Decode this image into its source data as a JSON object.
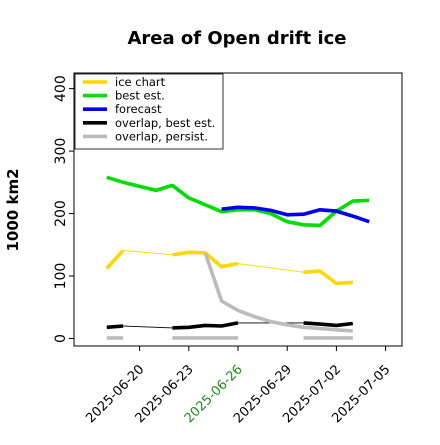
{
  "chart_data": {
    "type": "line",
    "title": "Area of Open drift ice",
    "ylabel": "1000 km2",
    "xlabel": "",
    "ylim": [
      -12,
      425
    ],
    "xlim": [
      "2025-06-16",
      "2025-07-06"
    ],
    "yticks": [
      0,
      100,
      200,
      300,
      400
    ],
    "xticks": [
      {
        "label": "2025-06-20",
        "date": "2025-06-20",
        "color": "#000000"
      },
      {
        "label": "2025-06-23",
        "date": "2025-06-23",
        "color": "#000000"
      },
      {
        "label": "2025-06-26",
        "date": "2025-06-26",
        "color": "#228B22"
      },
      {
        "label": "2025-06-29",
        "date": "2025-06-29",
        "color": "#000000"
      },
      {
        "label": "2025-07-02",
        "date": "2025-07-02",
        "color": "#000000"
      },
      {
        "label": "2025-07-05",
        "date": "2025-07-05",
        "color": "#000000"
      }
    ],
    "grid": false,
    "legend": {
      "position": "top-left"
    },
    "series": [
      {
        "name": "ice chart",
        "color": "#FFD700",
        "segments": [
          {
            "style": "thick",
            "points": [
              [
                "2025-06-18",
                112
              ],
              [
                "2025-06-19",
                141
              ]
            ]
          },
          {
            "style": "thin",
            "points": [
              [
                "2025-06-19",
                141
              ],
              [
                "2025-06-22",
                134
              ]
            ]
          },
          {
            "style": "thick",
            "points": [
              [
                "2025-06-22",
                134
              ],
              [
                "2025-06-23",
                138
              ],
              [
                "2025-06-24",
                137
              ],
              [
                "2025-06-25",
                115
              ],
              [
                "2025-06-26",
                120
              ]
            ]
          },
          {
            "style": "thin",
            "points": [
              [
                "2025-06-26",
                120
              ],
              [
                "2025-06-30",
                106
              ]
            ]
          },
          {
            "style": "thick",
            "points": [
              [
                "2025-06-30",
                106
              ],
              [
                "2025-07-01",
                108
              ],
              [
                "2025-07-02",
                88
              ],
              [
                "2025-07-03",
                90
              ]
            ]
          }
        ]
      },
      {
        "name": "best est.",
        "color": "#00DD00",
        "segments": [
          {
            "style": "thick",
            "points": [
              [
                "2025-06-18",
                258
              ],
              [
                "2025-06-19",
                250
              ],
              [
                "2025-06-21",
                237
              ],
              [
                "2025-06-22",
                245
              ],
              [
                "2025-06-23",
                225
              ],
              [
                "2025-06-25",
                203
              ],
              [
                "2025-06-26",
                206
              ],
              [
                "2025-06-27",
                206
              ],
              [
                "2025-06-28",
                200
              ],
              [
                "2025-06-29",
                187
              ],
              [
                "2025-06-30",
                182
              ],
              [
                "2025-07-01",
                181
              ],
              [
                "2025-07-02",
                204
              ],
              [
                "2025-07-03",
                220
              ],
              [
                "2025-07-04",
                221
              ]
            ]
          }
        ]
      },
      {
        "name": "forecast",
        "color": "#0000EE",
        "segments": [
          {
            "style": "thick",
            "points": [
              [
                "2025-06-25",
                207
              ],
              [
                "2025-06-26",
                210
              ],
              [
                "2025-06-27",
                209
              ],
              [
                "2025-06-28",
                205
              ],
              [
                "2025-06-29",
                198
              ],
              [
                "2025-06-30",
                199
              ],
              [
                "2025-07-01",
                206
              ],
              [
                "2025-07-02",
                204
              ],
              [
                "2025-07-03",
                196
              ],
              [
                "2025-07-04",
                187
              ]
            ]
          }
        ]
      },
      {
        "name": "overlap, best est.",
        "color": "#000000",
        "segments": [
          {
            "style": "thick",
            "points": [
              [
                "2025-06-18",
                18
              ],
              [
                "2025-06-19",
                20
              ]
            ]
          },
          {
            "style": "thin",
            "points": [
              [
                "2025-06-19",
                20
              ],
              [
                "2025-06-22",
                17
              ]
            ]
          },
          {
            "style": "thick",
            "points": [
              [
                "2025-06-22",
                17
              ],
              [
                "2025-06-23",
                18
              ],
              [
                "2025-06-24",
                21
              ],
              [
                "2025-06-25",
                20
              ],
              [
                "2025-06-26",
                25
              ]
            ]
          },
          {
            "style": "thin",
            "points": [
              [
                "2025-06-26",
                25
              ],
              [
                "2025-06-30",
                25
              ]
            ]
          },
          {
            "style": "thick",
            "points": [
              [
                "2025-06-30",
                25
              ],
              [
                "2025-07-01",
                23
              ],
              [
                "2025-07-02",
                21
              ],
              [
                "2025-07-03",
                24
              ]
            ]
          }
        ]
      },
      {
        "name": "overlap, persist.",
        "color": "#BBBBBB",
        "segments": [
          {
            "style": "thick",
            "points": [
              [
                "2025-06-18",
                1
              ],
              [
                "2025-06-19",
                1
              ]
            ]
          },
          {
            "style": "thick",
            "points": [
              [
                "2025-06-22",
                1
              ],
              [
                "2025-06-23",
                1
              ],
              [
                "2025-06-24",
                1
              ],
              [
                "2025-06-25",
                1
              ],
              [
                "2025-06-26",
                1
              ]
            ]
          },
          {
            "style": "thick",
            "points": [
              [
                "2025-06-24",
                137
              ],
              [
                "2025-06-25",
                60
              ],
              [
                "2025-06-26",
                45
              ],
              [
                "2025-06-27",
                35
              ],
              [
                "2025-06-28",
                27
              ],
              [
                "2025-06-29",
                22
              ],
              [
                "2025-06-30",
                18
              ],
              [
                "2025-07-01",
                16
              ],
              [
                "2025-07-02",
                14
              ],
              [
                "2025-07-03",
                12
              ]
            ]
          },
          {
            "style": "thick",
            "points": [
              [
                "2025-06-30",
                1
              ],
              [
                "2025-07-01",
                1
              ],
              [
                "2025-07-02",
                1
              ],
              [
                "2025-07-03",
                1
              ]
            ]
          }
        ]
      }
    ]
  }
}
